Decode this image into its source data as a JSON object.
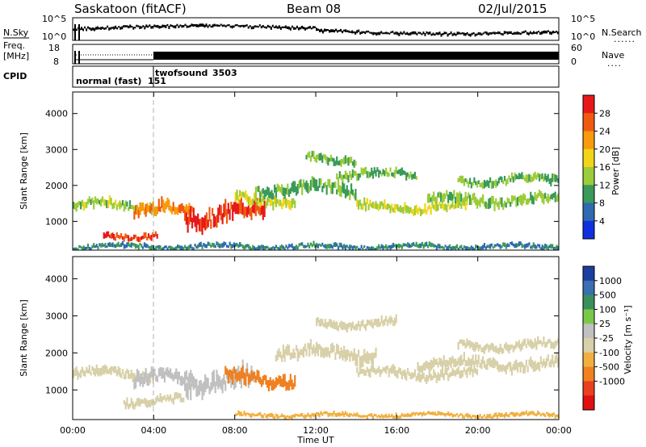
{
  "header": {
    "site": "Saskatoon (fitACF)",
    "beam": "Beam 08",
    "date": "02/Jul/2015"
  },
  "side_labels": {
    "nsky": "N.Sky",
    "freq": "Freq.",
    "freq_unit": "[MHz]",
    "cpid": "CPID",
    "nsearch": "N.Search",
    "nave": "Nave",
    "nsearch_line": "......",
    "nave_line": "...."
  },
  "noise_panel": {
    "ticks_left": [
      "10^5",
      "10^0"
    ],
    "ticks_right": [
      "10^5",
      "10^0"
    ]
  },
  "freq_panel": {
    "ticks_left": [
      "18",
      "8"
    ],
    "ticks_right": [
      "60",
      "0"
    ]
  },
  "cpid_panel": {
    "segments": [
      {
        "label": "normal (fast)",
        "start_h": 0.0,
        "end_h": 4.0
      },
      {
        "label": "151",
        "start_h": 4.0,
        "end_h": 24.0
      },
      {
        "label": "twofsound",
        "start_h": 4.0,
        "end_h": 24.0
      },
      {
        "label": "3503",
        "start_h": 4.0,
        "end_h": 24.0
      }
    ]
  },
  "x_axis": {
    "label": "Time UT",
    "ticks": [
      "00:00",
      "04:00",
      "08:00",
      "12:00",
      "16:00",
      "20:00",
      "00:00"
    ]
  },
  "power_colorbar": {
    "label": "Power [dB]",
    "ticks": [
      "28",
      "24",
      "20",
      "16",
      "12",
      "8",
      "4"
    ],
    "colors": [
      "#e8181a",
      "#f05a10",
      "#f89a0c",
      "#f0d51a",
      "#9ccc3a",
      "#3a9a5a",
      "#2f6ab0",
      "#1030e0"
    ]
  },
  "velocity_colorbar": {
    "label": "Velocity [m s⁻¹]",
    "ticks": [
      "1000",
      "500",
      "100",
      "25",
      "-25",
      "-100",
      "-500",
      "-1000"
    ],
    "colors": [
      "#1b3fa0",
      "#3a6fb0",
      "#3a8f5a",
      "#7ac84a",
      "#c0c0c0",
      "#d8d0a8",
      "#f0b040",
      "#f08020",
      "#e84020",
      "#e01010"
    ]
  },
  "chart_data": [
    {
      "type": "heatmap",
      "ylabel": "Slant Range [km]",
      "xlabel": "",
      "xlim_h": [
        0,
        24
      ],
      "ylim": [
        200,
        4600
      ],
      "y_ticks": [
        1000,
        2000,
        3000,
        4000
      ],
      "colorbar": "Power [dB]",
      "bands": [
        {
          "start_h": 0.0,
          "end_h": 4.0,
          "center_km": 1450,
          "width_km": 220,
          "value": 12
        },
        {
          "start_h": 1.5,
          "end_h": 4.2,
          "center_km": 600,
          "width_km": 150,
          "value": 26
        },
        {
          "start_h": 3.0,
          "end_h": 6.0,
          "center_km": 1300,
          "width_km": 300,
          "value": 22
        },
        {
          "start_h": 5.5,
          "end_h": 9.5,
          "center_km": 1200,
          "width_km": 420,
          "value": 27
        },
        {
          "start_h": 8.0,
          "end_h": 11.0,
          "center_km": 1600,
          "width_km": 250,
          "value": 14
        },
        {
          "start_h": 9.0,
          "end_h": 14.0,
          "center_km": 1900,
          "width_km": 280,
          "value": 9
        },
        {
          "start_h": 11.5,
          "end_h": 14.0,
          "center_km": 2750,
          "width_km": 200,
          "value": 10
        },
        {
          "start_h": 13.0,
          "end_h": 17.0,
          "center_km": 2300,
          "width_km": 200,
          "value": 10
        },
        {
          "start_h": 14.0,
          "end_h": 19.5,
          "center_km": 1400,
          "width_km": 220,
          "value": 14
        },
        {
          "start_h": 17.5,
          "end_h": 24.0,
          "center_km": 1600,
          "width_km": 250,
          "value": 11
        },
        {
          "start_h": 19.0,
          "end_h": 24.0,
          "center_km": 2150,
          "width_km": 200,
          "value": 10
        },
        {
          "start_h": 0.0,
          "end_h": 24.0,
          "center_km": 300,
          "width_km": 120,
          "value": 6
        }
      ]
    },
    {
      "type": "heatmap",
      "ylabel": "Slant Range [km]",
      "xlabel": "Time UT",
      "xlim_h": [
        0,
        24
      ],
      "ylim": [
        200,
        4600
      ],
      "y_ticks": [
        1000,
        2000,
        3000,
        4000
      ],
      "colorbar": "Velocity [m s⁻¹]",
      "bands": [
        {
          "start_h": 0.0,
          "end_h": 4.0,
          "center_km": 1450,
          "width_km": 220,
          "value": 0
        },
        {
          "start_h": 2.5,
          "end_h": 5.5,
          "center_km": 700,
          "width_km": 200,
          "value": 0
        },
        {
          "start_h": 3.0,
          "end_h": 6.0,
          "center_km": 1300,
          "width_km": 300,
          "value": 60
        },
        {
          "start_h": 5.5,
          "end_h": 9.0,
          "center_km": 1250,
          "width_km": 420,
          "value": 80
        },
        {
          "start_h": 7.5,
          "end_h": 11.0,
          "center_km": 1300,
          "width_km": 300,
          "value": -300
        },
        {
          "start_h": 10.0,
          "end_h": 15.0,
          "center_km": 2000,
          "width_km": 300,
          "value": 0
        },
        {
          "start_h": 12.0,
          "end_h": 16.0,
          "center_km": 2800,
          "width_km": 200,
          "value": 0
        },
        {
          "start_h": 14.0,
          "end_h": 20.0,
          "center_km": 1450,
          "width_km": 220,
          "value": 0
        },
        {
          "start_h": 17.0,
          "end_h": 24.0,
          "center_km": 1700,
          "width_km": 250,
          "value": 0
        },
        {
          "start_h": 19.0,
          "end_h": 24.0,
          "center_km": 2200,
          "width_km": 200,
          "value": 0
        },
        {
          "start_h": 8.0,
          "end_h": 24.0,
          "center_km": 320,
          "width_km": 100,
          "value": -60
        }
      ]
    }
  ]
}
